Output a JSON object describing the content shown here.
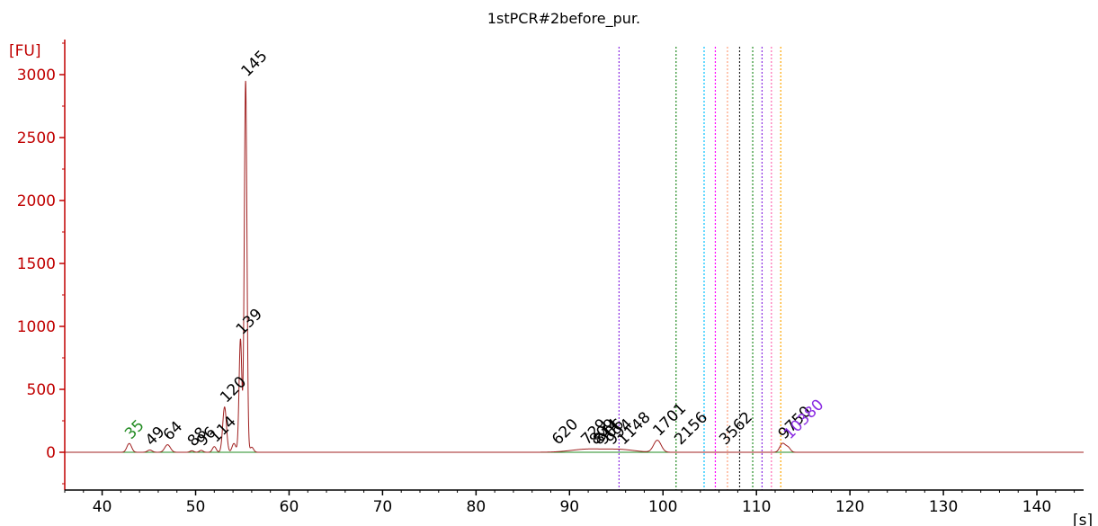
{
  "chart_data": {
    "type": "line",
    "title": "1stPCR#2before_pur.",
    "ylabel": "[FU]",
    "xlabel": "[s]",
    "xlim": [
      36,
      145
    ],
    "ylim": [
      -300,
      3250
    ],
    "x_ticks": [
      40,
      50,
      60,
      70,
      80,
      90,
      100,
      110,
      120,
      130,
      140
    ],
    "y_ticks": [
      0,
      500,
      1000,
      1500,
      2000,
      2500,
      3000
    ],
    "colors": {
      "axis": "#c00000",
      "trace": "#a02020",
      "marker_label": "#228b22",
      "ladder_label": "#8a2be2",
      "text": "#000000"
    },
    "trace_peaks": [
      {
        "x": 42.9,
        "y": 70,
        "w": 0.25
      },
      {
        "x": 45.1,
        "y": 18,
        "w": 0.25
      },
      {
        "x": 47.0,
        "y": 60,
        "w": 0.3
      },
      {
        "x": 49.6,
        "y": 12,
        "w": 0.2
      },
      {
        "x": 50.6,
        "y": 15,
        "w": 0.2
      },
      {
        "x": 52.0,
        "y": 45,
        "w": 0.2
      },
      {
        "x": 53.1,
        "y": 360,
        "w": 0.2
      },
      {
        "x": 54.1,
        "y": 70,
        "w": 0.2
      },
      {
        "x": 54.8,
        "y": 900,
        "w": 0.15
      },
      {
        "x": 55.35,
        "y": 2950,
        "w": 0.14
      },
      {
        "x": 56.0,
        "y": 40,
        "w": 0.2
      },
      {
        "x": 92.0,
        "y": 25,
        "w": 1.8
      },
      {
        "x": 95.5,
        "y": 20,
        "w": 1.5
      },
      {
        "x": 99.4,
        "y": 95,
        "w": 0.4
      },
      {
        "x": 112.8,
        "y": 70,
        "w": 0.3
      },
      {
        "x": 113.4,
        "y": 35,
        "w": 0.25
      }
    ],
    "peak_labels": [
      {
        "x": 42.9,
        "y": 70,
        "label": "35",
        "color": "green"
      },
      {
        "x": 45.1,
        "y": 18,
        "label": "49",
        "color": "black"
      },
      {
        "x": 47.0,
        "y": 60,
        "label": "64",
        "color": "black"
      },
      {
        "x": 49.6,
        "y": 12,
        "label": "88",
        "color": "black"
      },
      {
        "x": 50.6,
        "y": 15,
        "label": "96",
        "color": "black"
      },
      {
        "x": 52.0,
        "y": 45,
        "label": "114",
        "color": "black"
      },
      {
        "x": 53.1,
        "y": 360,
        "label": "120",
        "color": "black"
      },
      {
        "x": 54.8,
        "y": 900,
        "label": "139",
        "color": "black"
      },
      {
        "x": 55.35,
        "y": 2950,
        "label": "145",
        "color": "black"
      },
      {
        "x": 88.6,
        "y": 25,
        "label": "620",
        "color": "black"
      },
      {
        "x": 91.7,
        "y": 25,
        "label": "729",
        "color": "black"
      },
      {
        "x": 92.6,
        "y": 25,
        "label": "809",
        "color": "black"
      },
      {
        "x": 93.0,
        "y": 25,
        "label": "844",
        "color": "black"
      },
      {
        "x": 93.5,
        "y": 25,
        "label": "906",
        "color": "black"
      },
      {
        "x": 94.4,
        "y": 25,
        "label": "994",
        "color": "black"
      },
      {
        "x": 95.6,
        "y": 25,
        "label": "1148",
        "color": "black"
      },
      {
        "x": 99.4,
        "y": 95,
        "label": "1701",
        "color": "black"
      },
      {
        "x": 101.7,
        "y": 25,
        "label": "2156",
        "color": "black"
      },
      {
        "x": 106.5,
        "y": 25,
        "label": "3562",
        "color": "black"
      },
      {
        "x": 112.8,
        "y": 70,
        "label": "9750",
        "color": "black"
      },
      {
        "x": 113.4,
        "y": 70,
        "label": "10380",
        "color": "purple"
      }
    ],
    "vertical_markers": [
      {
        "x": 95.3,
        "color": "#8a2be2"
      },
      {
        "x": 101.4,
        "color": "#228b22"
      },
      {
        "x": 104.4,
        "color": "#00bfff"
      },
      {
        "x": 105.6,
        "color": "#ff00ff"
      },
      {
        "x": 106.9,
        "color": "#ffa07a"
      },
      {
        "x": 108.2,
        "color": "#222222"
      },
      {
        "x": 109.6,
        "color": "#228b22"
      },
      {
        "x": 110.6,
        "color": "#8a2be2"
      },
      {
        "x": 111.6,
        "color": "#ff69b4"
      },
      {
        "x": 112.6,
        "color": "#ffa500"
      }
    ]
  }
}
